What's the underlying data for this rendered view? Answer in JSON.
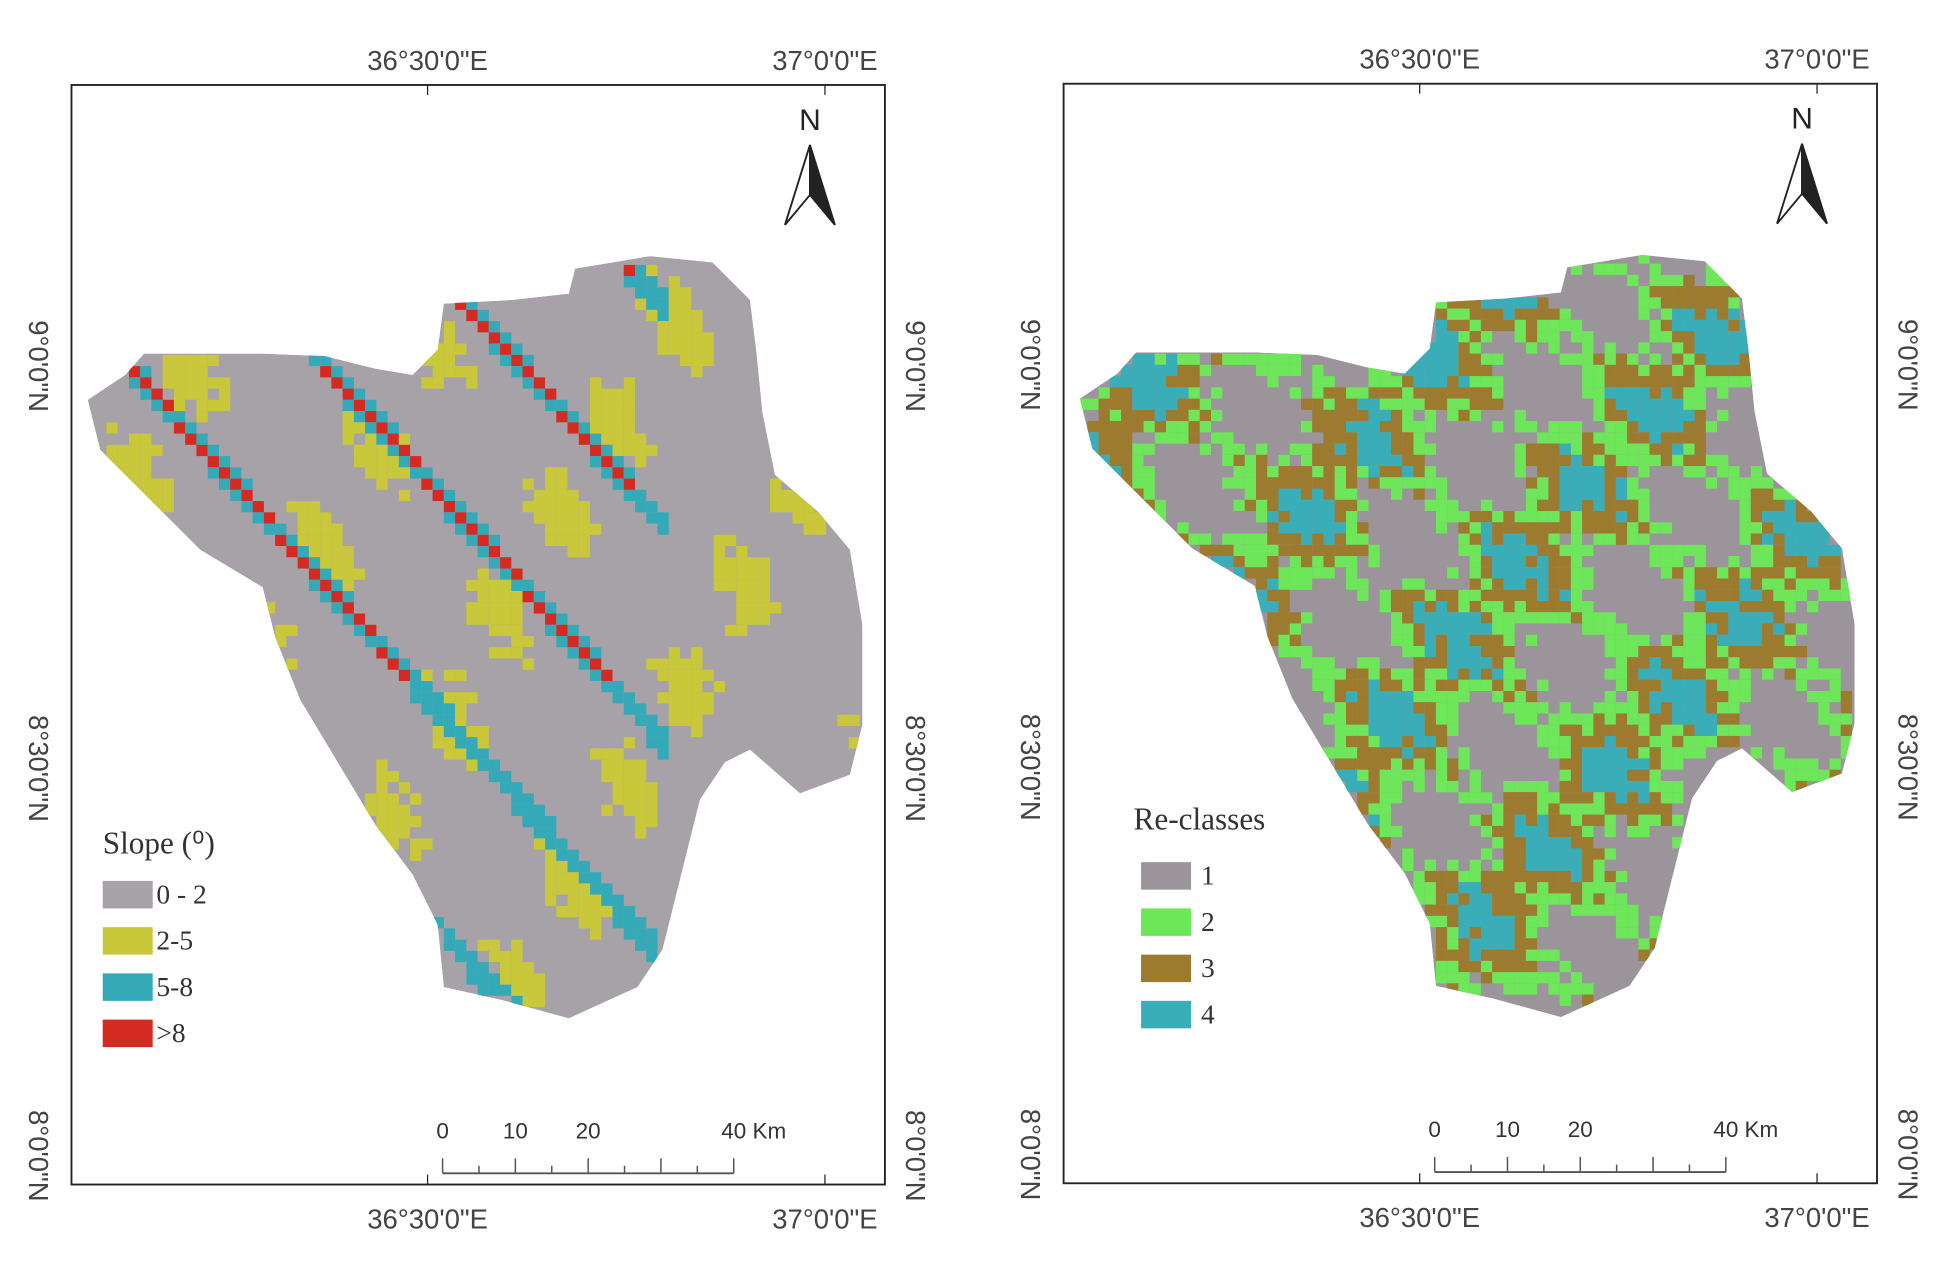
{
  "panels": [
    {
      "lon_labels_top": [
        "36°30'0\"E",
        "37°0'0\"E"
      ],
      "lon_labels_bottom": [
        "36°30'0\"E",
        "37°0'0\"E"
      ],
      "lat_labels_left": [
        "9°0'0\"N",
        "8°30'0\"N",
        "8°0'0\"N"
      ],
      "lat_labels_right": [
        "9°0'0\"N",
        "8°30'0\"N",
        "8°0'0\"N"
      ],
      "north": "N",
      "legend": {
        "title": "Slope (⁰)",
        "items": [
          {
            "label": "0 - 2",
            "color": "#a7a1a8"
          },
          {
            "label": "2-5",
            "color": "#c9c83a"
          },
          {
            "label": "5-8",
            "color": "#34aab8"
          },
          {
            "label": ">8",
            "color": "#d42a22"
          }
        ]
      },
      "scale_bar": {
        "labels": [
          0,
          10,
          20,
          40
        ],
        "unit": "Km"
      }
    },
    {
      "lon_labels_top": [
        "36°30'0\"E",
        "37°0'0\"E"
      ],
      "lon_labels_bottom": [
        "36°30'0\"E",
        "37°0'0\"E"
      ],
      "lat_labels_left": [
        "9°0'0\"N",
        "8°30'0\"N",
        "8°0'0\"N"
      ],
      "lat_labels_right": [
        "9°0'0\"N",
        "8°30'0\"N",
        "8°0'0\"N"
      ],
      "north": "N",
      "legend": {
        "title": "Re-classes",
        "items": [
          {
            "label": "1",
            "color": "#9b949b"
          },
          {
            "label": "2",
            "color": "#6ee65a"
          },
          {
            "label": "3",
            "color": "#9c7a2e"
          },
          {
            "label": "4",
            "color": "#3aaeb8"
          }
        ]
      },
      "scale_bar": {
        "labels": [
          0,
          10,
          20,
          40
        ],
        "unit": "Km"
      }
    }
  ]
}
